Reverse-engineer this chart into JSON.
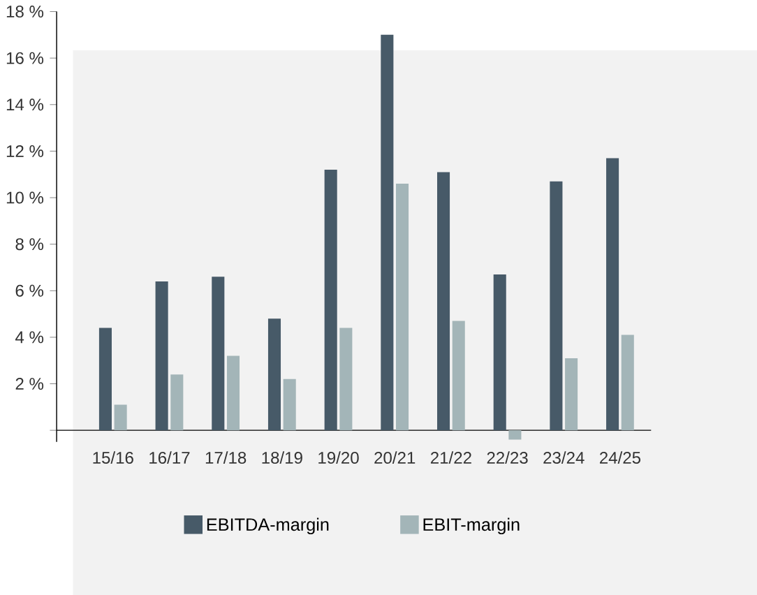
{
  "chart_data": {
    "type": "bar",
    "categories": [
      "15/16",
      "16/17",
      "17/18",
      "18/19",
      "19/20",
      "20/21",
      "21/22",
      "22/23",
      "23/24",
      "24/25"
    ],
    "series": [
      {
        "name": "EBITDA-margin",
        "color": "#475a68",
        "values": [
          4.4,
          6.4,
          6.6,
          4.8,
          11.2,
          17.0,
          11.1,
          6.7,
          10.7,
          11.7
        ]
      },
      {
        "name": "EBIT-margin",
        "color": "#a3b5b8",
        "values": [
          1.1,
          2.4,
          3.2,
          2.2,
          4.4,
          10.6,
          4.7,
          -0.4,
          3.1,
          4.1
        ]
      }
    ],
    "ylim": [
      -0.5,
      18
    ],
    "yticks": [
      {
        "value": 0,
        "label": null
      },
      {
        "value": 2,
        "label": "2 %"
      },
      {
        "value": 4,
        "label": "4 %"
      },
      {
        "value": 6,
        "label": "6 %"
      },
      {
        "value": 8,
        "label": "8 %"
      },
      {
        "value": 10,
        "label": "10 %"
      },
      {
        "value": 12,
        "label": "12 %"
      },
      {
        "value": 14,
        "label": "14 %"
      },
      {
        "value": 16,
        "label": "16 %"
      },
      {
        "value": 18,
        "label": "18 %"
      }
    ],
    "grid": false,
    "legend": "bottom"
  }
}
